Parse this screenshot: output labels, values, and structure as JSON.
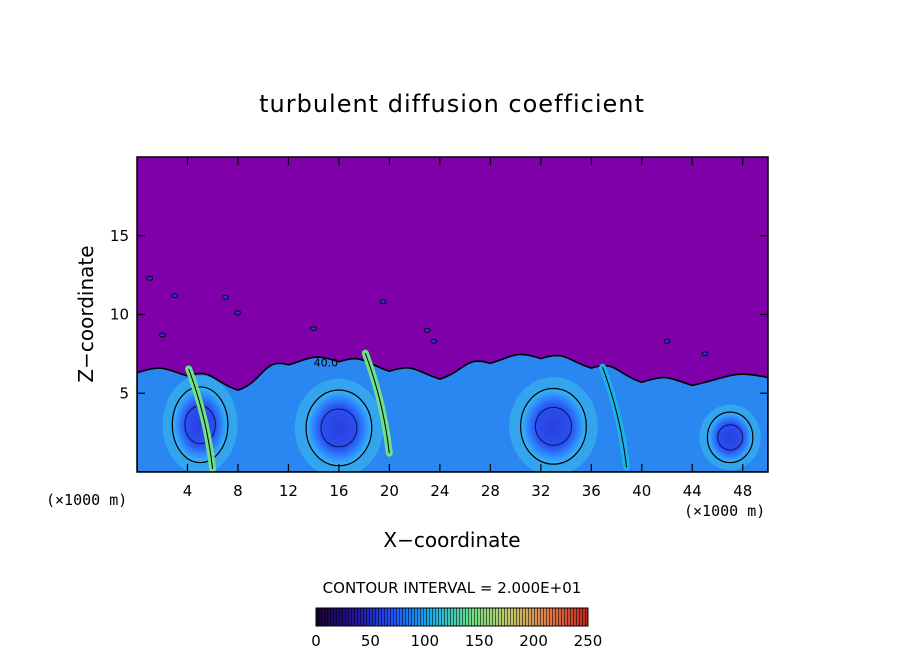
{
  "chart_data": {
    "type": "heatmap",
    "title": "turbulent diffusion coefficient",
    "xlabel": "X−coordinate",
    "ylabel": "Z−coordinate",
    "x_unit": "(×1000 m)",
    "y_unit": "(×1000 m)",
    "xlim": [
      0,
      50
    ],
    "ylim": [
      0,
      20
    ],
    "x_ticks": [
      4,
      8,
      12,
      16,
      20,
      24,
      28,
      32,
      36,
      40,
      44,
      48
    ],
    "y_ticks": [
      5,
      10,
      15
    ],
    "contour_interval_label": "CONTOUR INTERVAL = 2.000E+01",
    "contour_label": "40.0",
    "colorbar": {
      "min": 0,
      "max": 250,
      "ticks": [
        0,
        50,
        100,
        150,
        200,
        250
      ],
      "colors": [
        "#1a0033",
        "#22149a",
        "#1f55ff",
        "#19b3e6",
        "#6fe08a",
        "#c6c96a",
        "#e07a4a",
        "#c2261e"
      ]
    },
    "background_value": 0,
    "background_color": "#7f00a8",
    "turbulent_layer_top_km": [
      6.3,
      6.1,
      5.2,
      6.8,
      7.0,
      6.4,
      5.9,
      6.9,
      7.2,
      6.6,
      5.7,
      5.5,
      6.0
    ],
    "turbulent_layer_x_km": [
      0,
      4,
      8,
      12,
      16,
      20,
      24,
      28,
      32,
      36,
      40,
      44,
      50
    ],
    "eddies": [
      {
        "x": 5,
        "z": 3.0,
        "rx": 2.2,
        "rz": 2.4,
        "value": 55
      },
      {
        "x": 16,
        "z": 2.8,
        "rx": 2.6,
        "rz": 2.4,
        "value": 60
      },
      {
        "x": 33,
        "z": 2.9,
        "rx": 2.6,
        "rz": 2.4,
        "value": 65
      },
      {
        "x": 47,
        "z": 2.2,
        "rx": 1.8,
        "rz": 1.6,
        "value": 55
      }
    ],
    "streaks": [
      {
        "x": 5.2,
        "z": 3.5,
        "value": 140
      },
      {
        "x": 19.2,
        "z": 4.5,
        "value": 145
      },
      {
        "x": 38,
        "z": 3.6,
        "value": 110
      }
    ]
  }
}
